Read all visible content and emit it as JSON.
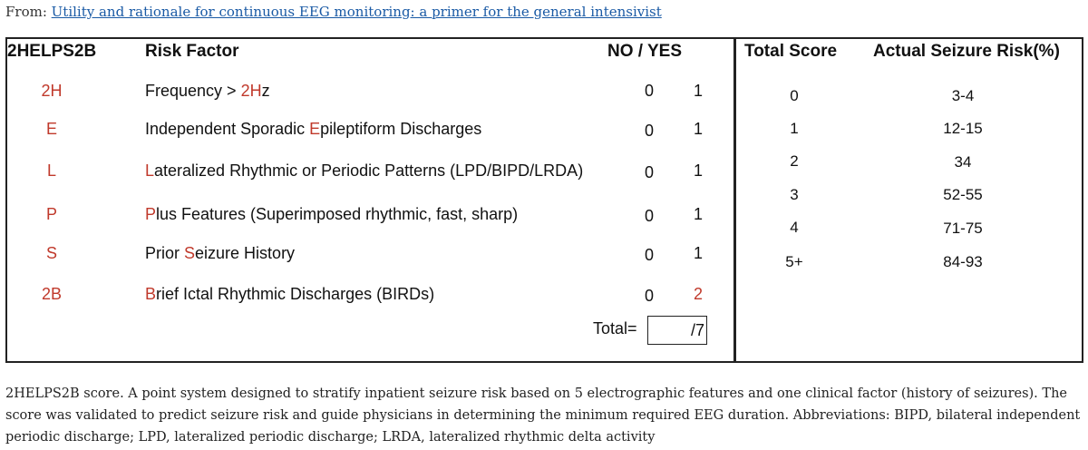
{
  "source": {
    "prefix": "From: ",
    "link": "Utility and rationale for continuous EEG monitoring: a primer for the general intensivist"
  },
  "headers": {
    "code": "2HELPS2B",
    "factor": "Risk Factor",
    "noyes": "NO / YES",
    "total_score": "Total Score",
    "risk": "Actual Seizure Risk(%)"
  },
  "rows": [
    {
      "code": "2H",
      "pre": "Frequency > ",
      "hl": "2H",
      "post": "z",
      "no": "0",
      "yes": "1",
      "yes_red": false
    },
    {
      "code": "E",
      "pre": "Independent Sporadic ",
      "hl": "E",
      "post": "pileptiform Discharges",
      "no": "0",
      "yes": "1",
      "yes_red": false
    },
    {
      "code": "L",
      "pre": "",
      "hl": "L",
      "post": "ateralized Rhythmic or Periodic Patterns (LPD/BIPD/LRDA)",
      "no": "0",
      "yes": "1",
      "yes_red": false
    },
    {
      "code": "P",
      "pre": "",
      "hl": "P",
      "post": "lus Features (Superimposed rhythmic, fast, sharp)",
      "no": "0",
      "yes": "1",
      "yes_red": false
    },
    {
      "code": "S",
      "pre": "Prior ",
      "hl": "S",
      "post": "eizure History",
      "no": "0",
      "yes": "1",
      "yes_red": false
    },
    {
      "code": "2B",
      "pre": "",
      "hl": "B",
      "post": "rief Ictal Rhythmic Discharges (BIRDs)",
      "no": "0",
      "yes": "2",
      "yes_red": true
    }
  ],
  "total": {
    "label": "Total=",
    "value": "/7"
  },
  "scores": [
    {
      "score": "0",
      "risk": "3-4"
    },
    {
      "score": "1",
      "risk": "12-15"
    },
    {
      "score": "2",
      "risk": "34"
    },
    {
      "score": "3",
      "risk": "52-55"
    },
    {
      "score": "4",
      "risk": "71-75"
    },
    {
      "score": "5+",
      "risk": "84-93"
    }
  ],
  "caption": "2HELPS2B score. A point system designed to stratify inpatient seizure risk based on 5 electrographic features and one clinical factor (history of seizures). The score was validated to predict seizure risk and guide physicians in determining the minimum required EEG duration. Abbreviations: BIPD, bilateral independent periodic discharge; LPD, lateralized periodic discharge; LRDA, lateralized rhythmic delta activity",
  "colors": {
    "highlight": "#c0392b",
    "link": "#1a5aa5"
  }
}
